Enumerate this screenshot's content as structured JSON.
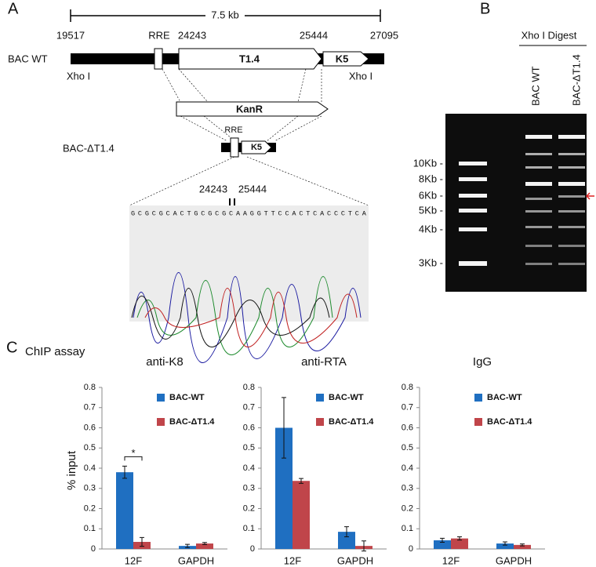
{
  "panel_a": {
    "label": "A",
    "scale": "7.5 kb",
    "positions": [
      "19517",
      "24243",
      "25444",
      "27095"
    ],
    "rre": "RRE",
    "wt_label": "BAC WT",
    "t14": "T1.4",
    "k5": "K5",
    "xho_left": "Xho I",
    "xho_right": "Xho I",
    "kanr": "KanR",
    "del_label": "BAC-ΔT1.4",
    "del_rre": "RRE",
    "del_k5": "K5",
    "junction": [
      "24243",
      "25444"
    ],
    "sequence": "GCGCGCACTGCGCGCAAGGTTCCACTCACCCTCA"
  },
  "panel_b": {
    "label": "B",
    "digest": "Xho I Digest",
    "lanes": [
      "BAC WT",
      "BAC-ΔT1.4"
    ],
    "sizes": [
      "10Kb -",
      "8Kb -",
      "6Kb -",
      "5Kb -",
      "4Kb -",
      "3Kb -"
    ]
  },
  "panel_c": {
    "label": "C",
    "title": "ChIP assay",
    "y_label": "% input"
  },
  "chart_data": [
    {
      "type": "bar",
      "title": "anti-K8",
      "categories": [
        "12F",
        "GAPDH"
      ],
      "ylim": [
        0,
        0.8
      ],
      "yticks": [
        0,
        0.1,
        0.2,
        0.3,
        0.4,
        0.5,
        0.6,
        0.7,
        0.8
      ],
      "annotation": "*",
      "series": [
        {
          "name": "BAC-WT",
          "color": "#1f6fc1",
          "values": [
            0.38,
            0.015
          ],
          "errors": [
            0.03,
            0.008
          ]
        },
        {
          "name": "BAC-ΔT1.4",
          "color": "#c0454a",
          "values": [
            0.035,
            0.027
          ],
          "errors": [
            0.022,
            0.005
          ]
        }
      ]
    },
    {
      "type": "bar",
      "title": "anti-RTA",
      "categories": [
        "12F",
        "GAPDH"
      ],
      "ylim": [
        0,
        0.8
      ],
      "yticks": [
        0,
        0.1,
        0.2,
        0.3,
        0.4,
        0.5,
        0.6,
        0.7,
        0.8
      ],
      "series": [
        {
          "name": "BAC-WT",
          "color": "#1f6fc1",
          "values": [
            0.6,
            0.085
          ],
          "errors": [
            0.15,
            0.025
          ]
        },
        {
          "name": "BAC-ΔT1.4",
          "color": "#c0454a",
          "values": [
            0.337,
            0.015
          ],
          "errors": [
            0.012,
            0.025
          ]
        }
      ]
    },
    {
      "type": "bar",
      "title": "IgG",
      "categories": [
        "12F",
        "GAPDH"
      ],
      "ylim": [
        0,
        0.8
      ],
      "yticks": [
        0,
        0.1,
        0.2,
        0.3,
        0.4,
        0.5,
        0.6,
        0.7,
        0.8
      ],
      "series": [
        {
          "name": "BAC-WT",
          "color": "#1f6fc1",
          "values": [
            0.043,
            0.027
          ],
          "errors": [
            0.01,
            0.008
          ]
        },
        {
          "name": "BAC-ΔT1.4",
          "color": "#c0454a",
          "values": [
            0.052,
            0.02
          ],
          "errors": [
            0.008,
            0.005
          ]
        }
      ]
    }
  ]
}
